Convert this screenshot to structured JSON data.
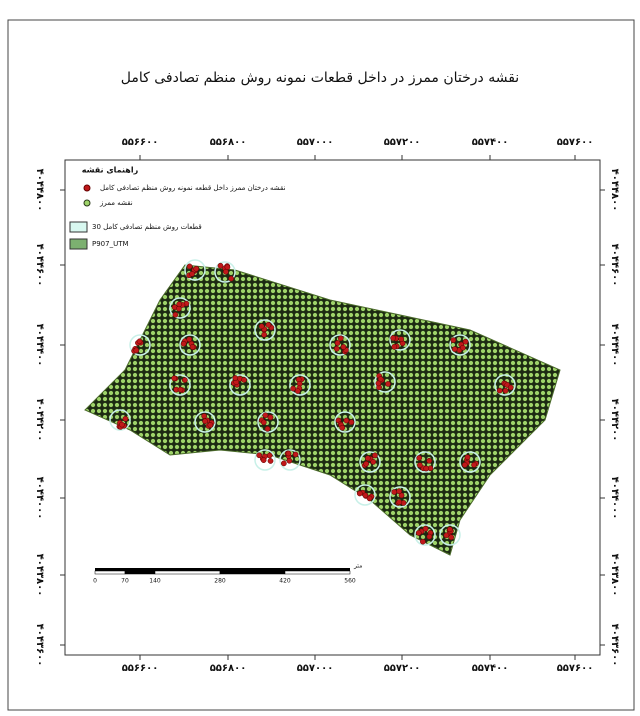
{
  "title": "نقشه درختان ممرز در داخل قطعات نمونه روش منظم تصادفی کامل",
  "x_labels": [
    "۵۵۶۶۰۰",
    "۵۵۶۸۰۰",
    "۵۵۷۰۰۰",
    "۵۵۷۲۰۰",
    "۵۵۷۴۰۰",
    "۵۵۷۶۰۰"
  ],
  "y_labels": [
    "۴۰۴۴۸۰۰",
    "۴۰۴۴۶۰۰",
    "۴۰۴۴۴۰۰",
    "۴۰۴۴۲۰۰",
    "۴۰۴۴۰۰۰",
    "۴۰۴۳۸۰۰",
    "۴۰۴۳۶۰۰"
  ],
  "legend": {
    "title": "راهنمای نقشه",
    "items": [
      "نقشه درختان ممرز داخل قطعه نمونه روش منظم تصادفی کامل",
      "نقشه ممرز",
      "قطعات روش منظم تصادفی کامل 30",
      "P907_UTM"
    ]
  },
  "scale_bar": {
    "labels": [
      "0",
      "70",
      "140",
      "280",
      "420",
      "560"
    ],
    "unit": "متر"
  }
}
